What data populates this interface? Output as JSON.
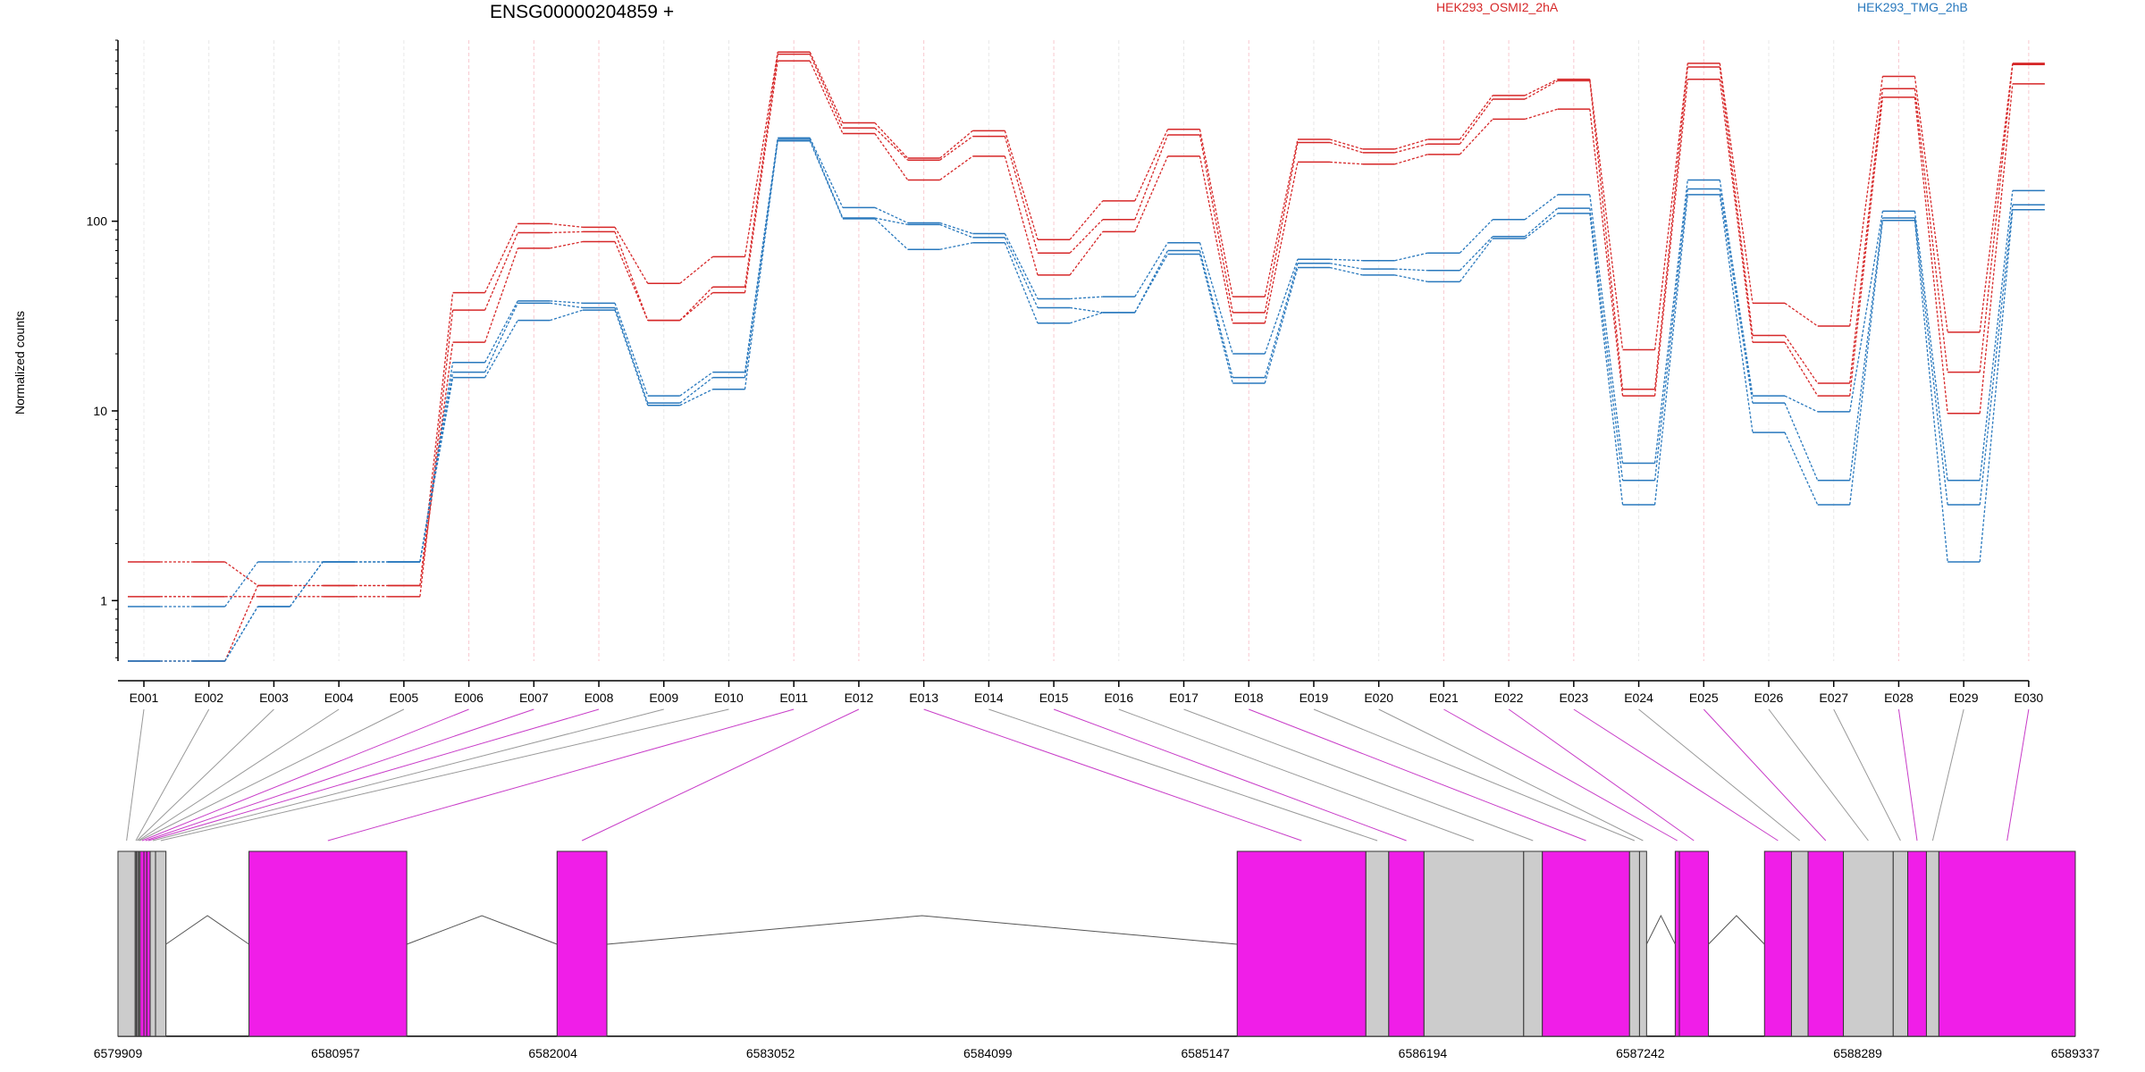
{
  "chart_data": {
    "type": "line",
    "title": "ENSG00000204859 +",
    "ylabel": "Normalized counts",
    "yscale": "log",
    "ylim": [
      0.48,
      900
    ],
    "yticks": [
      1,
      10,
      100
    ],
    "ytick_labels": [
      "1",
      "10",
      "100"
    ],
    "categories": [
      "E001",
      "E002",
      "E003",
      "E004",
      "E005",
      "E006",
      "E007",
      "E008",
      "E009",
      "E010",
      "E011",
      "E012",
      "E013",
      "E014",
      "E015",
      "E016",
      "E017",
      "E018",
      "E019",
      "E020",
      "E021",
      "E022",
      "E023",
      "E024",
      "E025",
      "E026",
      "E027",
      "E028",
      "E029",
      "E030"
    ],
    "legend": [
      {
        "label": "HEK293_OSMI2_2hA",
        "color": "#d62728"
      },
      {
        "label": "HEK293_TMG_2hB",
        "color": "#2878bd"
      }
    ],
    "series": [
      {
        "group": "HEK293_OSMI2_2hA",
        "color": "#d62728",
        "values": [
          1.6,
          1.6,
          1.2,
          1.2,
          1.2,
          42,
          97,
          93,
          47,
          65,
          780,
          330,
          215,
          300,
          80,
          128,
          305,
          40,
          270,
          240,
          270,
          460,
          560,
          21,
          680,
          37,
          28,
          580,
          26,
          680
        ]
      },
      {
        "group": "HEK293_OSMI2_2hA",
        "color": "#d62728",
        "values": [
          1.05,
          1.05,
          1.05,
          1.05,
          1.05,
          34,
          87,
          88,
          30,
          45,
          760,
          310,
          210,
          280,
          68,
          102,
          285,
          33,
          260,
          230,
          255,
          440,
          550,
          13,
          650,
          25,
          14,
          500,
          16,
          670
        ]
      },
      {
        "group": "HEK293_OSMI2_2hA",
        "color": "#d62728",
        "values": [
          0.48,
          0.48,
          1.2,
          1.2,
          1.2,
          23,
          72,
          78,
          30,
          42,
          700,
          290,
          165,
          220,
          52,
          88,
          220,
          29,
          205,
          200,
          225,
          345,
          390,
          12,
          560,
          23,
          12,
          450,
          9.7,
          530
        ]
      },
      {
        "group": "HEK293_TMG_2hB",
        "color": "#2878bd",
        "values": [
          0.93,
          0.93,
          1.6,
          1.6,
          1.6,
          18,
          38,
          37,
          12,
          16,
          275,
          118,
          98,
          86,
          39,
          40,
          77,
          20,
          63,
          62,
          68,
          102,
          138,
          5.3,
          165,
          12,
          9.9,
          113,
          4.3,
          145
        ]
      },
      {
        "group": "HEK293_TMG_2hB",
        "color": "#2878bd",
        "values": [
          0.48,
          0.48,
          0.93,
          1.6,
          1.6,
          16,
          37,
          35,
          11,
          15,
          270,
          104,
          96,
          82,
          35,
          33,
          70,
          15,
          60,
          56,
          55,
          83,
          117,
          4.3,
          148,
          11,
          4.3,
          104,
          3.2,
          122
        ]
      },
      {
        "group": "HEK293_TMG_2hB",
        "color": "#2878bd",
        "values": [
          0.48,
          0.48,
          0.93,
          1.6,
          1.6,
          15,
          30,
          34,
          10.7,
          13,
          265,
          103,
          71,
          77,
          29,
          33,
          67,
          14,
          57,
          52,
          48,
          81,
          110,
          3.2,
          138,
          7.7,
          3.2,
          101,
          1.6,
          115
        ]
      }
    ],
    "gene_model": {
      "genomic_ticks": [
        "6579909",
        "6580957",
        "6582004",
        "6583052",
        "6584099",
        "6585147",
        "6586194",
        "6587242",
        "6588289",
        "6589337"
      ],
      "genomic_range": [
        6579909,
        6589337
      ],
      "highlight_color": "#f01ee8",
      "base_color": "#cccccc",
      "exon_bins": [
        {
          "id": "E001",
          "start": 6579909,
          "end": 6579992,
          "highlight": false
        },
        {
          "id": "E002",
          "start": 6579992,
          "end": 6579998,
          "highlight": false
        },
        {
          "id": "E003",
          "start": 6579998,
          "end": 6580004,
          "highlight": false
        },
        {
          "id": "E004",
          "start": 6580004,
          "end": 6580010,
          "highlight": false
        },
        {
          "id": "E005",
          "start": 6580010,
          "end": 6580016,
          "highlight": false
        },
        {
          "id": "E006",
          "start": 6580016,
          "end": 6580034,
          "highlight": true
        },
        {
          "id": "E007",
          "start": 6580034,
          "end": 6580048,
          "highlight": true
        },
        {
          "id": "E008",
          "start": 6580048,
          "end": 6580064,
          "highlight": true
        },
        {
          "id": "E009",
          "start": 6580064,
          "end": 6580090,
          "highlight": false
        },
        {
          "id": "E010",
          "start": 6580090,
          "end": 6580140,
          "highlight": false
        },
        {
          "id": "E011",
          "start": 6580540,
          "end": 6581300,
          "highlight": true
        },
        {
          "id": "E012",
          "start": 6582024,
          "end": 6582264,
          "highlight": true
        },
        {
          "id": "E013",
          "start": 6585300,
          "end": 6585920,
          "highlight": true
        },
        {
          "id": "E014",
          "start": 6585920,
          "end": 6586030,
          "highlight": false
        },
        {
          "id": "E015",
          "start": 6586030,
          "end": 6586200,
          "highlight": true
        },
        {
          "id": "E016",
          "start": 6586200,
          "end": 6586680,
          "highlight": false
        },
        {
          "id": "E017",
          "start": 6586680,
          "end": 6586770,
          "highlight": false
        },
        {
          "id": "E018",
          "start": 6586770,
          "end": 6587190,
          "highlight": true
        },
        {
          "id": "E019",
          "start": 6587190,
          "end": 6587238,
          "highlight": false
        },
        {
          "id": "E020",
          "start": 6587238,
          "end": 6587272,
          "highlight": false
        },
        {
          "id": "E021",
          "start": 6587410,
          "end": 6587430,
          "highlight": true
        },
        {
          "id": "E022",
          "start": 6587430,
          "end": 6587570,
          "highlight": true
        },
        {
          "id": "E023",
          "start": 6587840,
          "end": 6587970,
          "highlight": true
        },
        {
          "id": "E024",
          "start": 6587970,
          "end": 6588050,
          "highlight": false
        },
        {
          "id": "E025",
          "start": 6588050,
          "end": 6588220,
          "highlight": true
        },
        {
          "id": "E026",
          "start": 6588220,
          "end": 6588460,
          "highlight": false
        },
        {
          "id": "E027",
          "start": 6588460,
          "end": 6588530,
          "highlight": false
        },
        {
          "id": "E028",
          "start": 6588530,
          "end": 6588620,
          "highlight": true
        },
        {
          "id": "E029",
          "start": 6588620,
          "end": 6588680,
          "highlight": false
        },
        {
          "id": "E030",
          "start": 6588680,
          "end": 6589337,
          "highlight": true
        }
      ]
    }
  }
}
